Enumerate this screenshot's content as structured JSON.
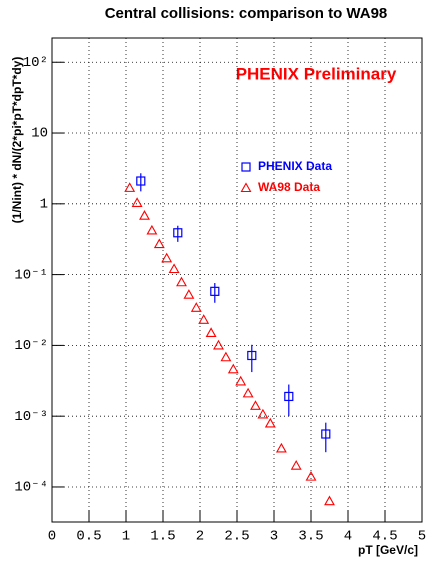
{
  "chart_data": {
    "type": "scatter",
    "title": "Central collisions: comparison to WA98",
    "annotation": "PHENIX Preliminary",
    "x_label": "pT [GeV/c]",
    "y_label": "(1/Nint) * dN/(2*pi*pT*dpT*dy)",
    "xlim": [
      0,
      5
    ],
    "ylim": [
      3.2e-05,
      220
    ],
    "log_y": true,
    "grid": true,
    "xticks": [
      0,
      0.5,
      1,
      1.5,
      2,
      2.5,
      3,
      3.5,
      4,
      4.5,
      5
    ],
    "yticks": [
      {
        "value": 0.0001,
        "label": "10⁻⁴"
      },
      {
        "value": 0.001,
        "label": "10⁻³"
      },
      {
        "value": 0.01,
        "label": "10⁻²"
      },
      {
        "value": 0.1,
        "label": "10⁻¹"
      },
      1,
      10,
      {
        "value": 100,
        "label": "10²"
      }
    ],
    "series": [
      {
        "name": "PHENIX Data",
        "color": "#0000ff",
        "marker": "square",
        "x": [
          1.2,
          1.7,
          2.2,
          2.7,
          3.2,
          3.7
        ],
        "values": [
          2.1,
          0.39,
          0.058,
          0.0072,
          0.0019,
          0.00056
        ],
        "errors": [
          0.6,
          0.1,
          0.018,
          0.003,
          0.0009,
          0.00025
        ]
      },
      {
        "name": "WA98 Data",
        "color": "#ff0000",
        "marker": "triangle",
        "x": [
          1.05,
          1.15,
          1.25,
          1.35,
          1.45,
          1.55,
          1.65,
          1.75,
          1.85,
          1.95,
          2.05,
          2.15,
          2.25,
          2.35,
          2.45,
          2.55,
          2.65,
          2.75,
          2.85,
          2.95,
          3.1,
          3.3,
          3.5,
          3.75
        ],
        "values": [
          1.68,
          1.03,
          0.68,
          0.42,
          0.27,
          0.17,
          0.12,
          0.078,
          0.052,
          0.034,
          0.023,
          0.015,
          0.01,
          0.0068,
          0.0046,
          0.0031,
          0.0021,
          0.0014,
          0.00106,
          0.00079,
          0.00035,
          0.0002,
          0.00014,
          6.3e-05
        ]
      }
    ]
  }
}
